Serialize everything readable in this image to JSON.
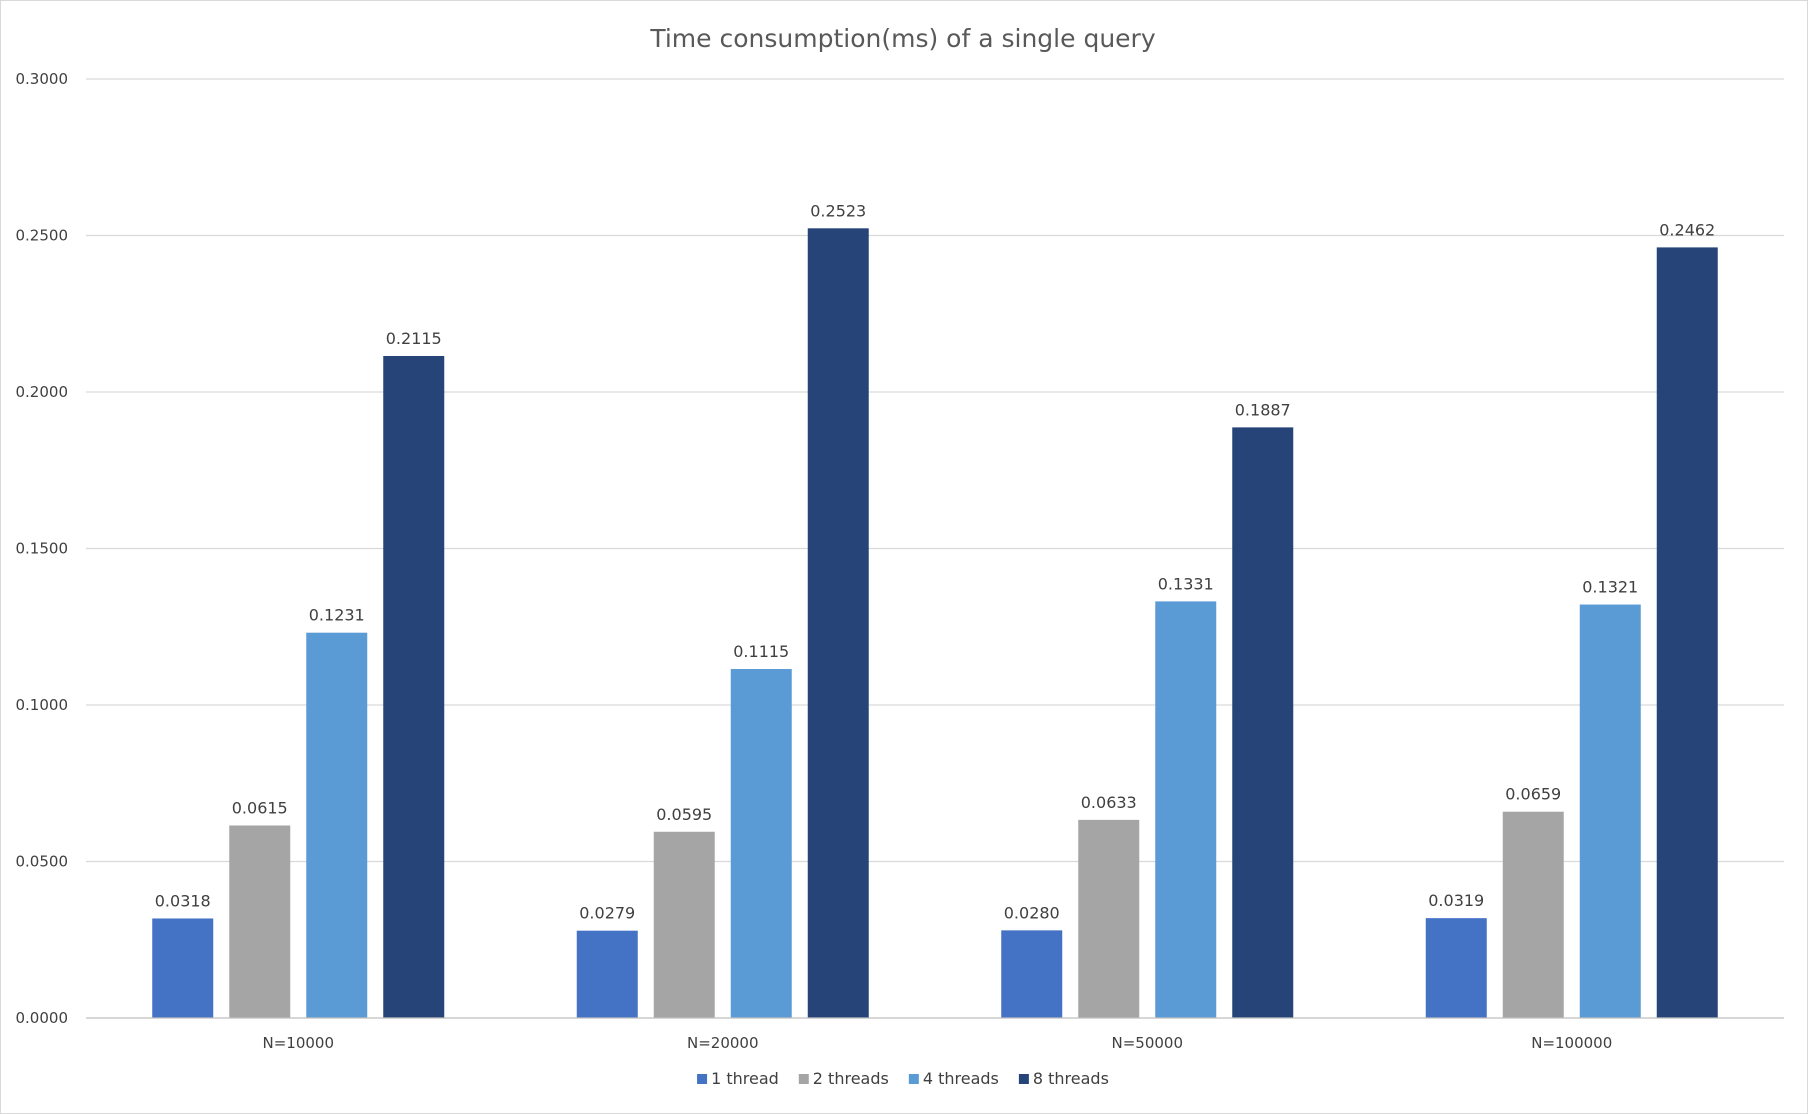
{
  "chart_data": {
    "type": "bar",
    "title": "Time consumption(ms)  of a single query",
    "xlabel": "",
    "ylabel": "",
    "ylim": [
      0,
      0.3
    ],
    "yticks": [
      "0.0000",
      "0.0500",
      "0.1000",
      "0.1500",
      "0.2000",
      "0.2500",
      "0.3000"
    ],
    "grid": true,
    "legend_position": "bottom",
    "categories": [
      "N=10000",
      "N=20000",
      "N=50000",
      "N=100000"
    ],
    "series": [
      {
        "name": "1 thread",
        "color": "#4472c4",
        "values": [
          0.0318,
          0.0279,
          0.028,
          0.0319
        ],
        "labels": [
          "0.0318",
          "0.0279",
          "0.0280",
          "0.0319"
        ]
      },
      {
        "name": "2 threads",
        "color": "#a5a5a5",
        "values": [
          0.0615,
          0.0595,
          0.0633,
          0.0659
        ],
        "labels": [
          "0.0615",
          "0.0595",
          "0.0633",
          "0.0659"
        ]
      },
      {
        "name": "4  threads",
        "color": "#5b9bd5",
        "values": [
          0.1231,
          0.1115,
          0.1331,
          0.1321
        ],
        "labels": [
          "0.1231",
          "0.1115",
          "0.1331",
          "0.1321"
        ]
      },
      {
        "name": "8 threads",
        "color": "#264478",
        "values": [
          0.2115,
          0.2523,
          0.1887,
          0.2462
        ],
        "labels": [
          "0.2115",
          "0.2523",
          "0.1887",
          "0.2462"
        ]
      }
    ]
  }
}
